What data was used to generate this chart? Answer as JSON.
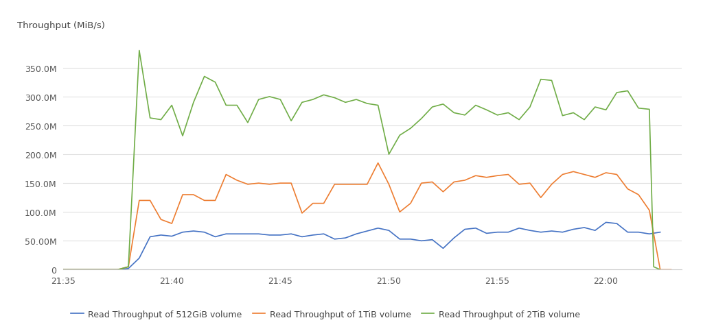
{
  "ylabel": "Throughput (MiB/s)",
  "background_color": "#ffffff",
  "grid_color": "#e0e0e0",
  "y_ticks": [
    0,
    50000000,
    100000000,
    150000000,
    200000000,
    250000000,
    300000000,
    350000000
  ],
  "x_tick_minutes": [
    0,
    5,
    10,
    15,
    20,
    25,
    28
  ],
  "x_tick_labels": [
    "21:35",
    "21:40",
    "21:45",
    "21:50",
    "21:55",
    "22:00",
    ""
  ],
  "xlim_minutes": [
    0,
    28.5
  ],
  "ylim": [
    0,
    400000000
  ],
  "series": {
    "512GiB": {
      "color": "#4472c4",
      "label": "Read Throughput of 512GiB volume",
      "t_minutes": [
        0,
        2.5,
        3.0,
        3.5,
        4.0,
        4.5,
        5.0,
        5.5,
        6.0,
        6.5,
        7.0,
        7.5,
        8.0,
        8.5,
        9.0,
        9.5,
        10.0,
        10.5,
        11.0,
        11.5,
        12.0,
        12.5,
        13.0,
        13.5,
        14.0,
        14.5,
        15.0,
        15.5,
        16.0,
        16.5,
        17.0,
        17.5,
        18.0,
        18.5,
        19.0,
        19.5,
        20.0,
        20.5,
        21.0,
        21.5,
        22.0,
        22.5,
        23.0,
        23.5,
        24.0,
        24.5,
        25.0,
        25.5,
        26.0,
        26.5,
        27.0,
        27.5
      ],
      "y": [
        0,
        0,
        2000000.0,
        20000000.0,
        57000000.0,
        60000000.0,
        58000000.0,
        65000000.0,
        67000000.0,
        65000000.0,
        57000000.0,
        62000000.0,
        62000000.0,
        62000000.0,
        62000000.0,
        60000000.0,
        60000000.0,
        62000000.0,
        57000000.0,
        60000000.0,
        62000000.0,
        53000000.0,
        55000000.0,
        62000000.0,
        67000000.0,
        72000000.0,
        68000000.0,
        53000000.0,
        53000000.0,
        50000000.0,
        52000000.0,
        37000000.0,
        55000000.0,
        70000000.0,
        72000000.0,
        63000000.0,
        65000000.0,
        65000000.0,
        72000000.0,
        68000000.0,
        65000000.0,
        67000000.0,
        65000000.0,
        70000000.0,
        73000000.0,
        68000000.0,
        82000000.0,
        80000000.0,
        65000000.0,
        65000000.0,
        62000000.0,
        65000000.0
      ]
    },
    "1TiB": {
      "color": "#ed7d31",
      "label": "Read Throughput of 1TiB volume",
      "t_minutes": [
        0,
        2.5,
        3.0,
        3.5,
        4.0,
        4.5,
        5.0,
        5.5,
        6.0,
        6.5,
        7.0,
        7.5,
        8.0,
        8.5,
        9.0,
        9.5,
        10.0,
        10.5,
        11.0,
        11.5,
        12.0,
        12.5,
        13.0,
        13.5,
        14.0,
        14.5,
        15.0,
        15.5,
        16.0,
        16.5,
        17.0,
        17.5,
        18.0,
        18.5,
        19.0,
        19.5,
        20.0,
        20.5,
        21.0,
        21.5,
        22.0,
        22.5,
        23.0,
        23.5,
        24.0,
        24.5,
        25.0,
        25.5,
        26.0,
        26.5,
        27.0,
        27.5,
        28.0
      ],
      "y": [
        0,
        0,
        5000000.0,
        120000000.0,
        120000000.0,
        87000000.0,
        80000000.0,
        130000000.0,
        130000000.0,
        120000000.0,
        120000000.0,
        165000000.0,
        155000000.0,
        148000000.0,
        150000000.0,
        148000000.0,
        150000000.0,
        150000000.0,
        98000000.0,
        115000000.0,
        115000000.0,
        148000000.0,
        148000000.0,
        148000000.0,
        148000000.0,
        185000000.0,
        148000000.0,
        100000000.0,
        115000000.0,
        150000000.0,
        152000000.0,
        135000000.0,
        152000000.0,
        155000000.0,
        163000000.0,
        160000000.0,
        163000000.0,
        165000000.0,
        148000000.0,
        150000000.0,
        125000000.0,
        148000000.0,
        165000000.0,
        170000000.0,
        165000000.0,
        160000000.0,
        168000000.0,
        165000000.0,
        140000000.0,
        130000000.0,
        103000000.0,
        0,
        0
      ]
    },
    "2TiB": {
      "color": "#70ad47",
      "label": "Read Throughput of 2TiB volume",
      "t_minutes": [
        0,
        2.5,
        3.0,
        3.5,
        4.0,
        4.5,
        5.0,
        5.5,
        6.0,
        6.5,
        7.0,
        7.5,
        8.0,
        8.5,
        9.0,
        9.5,
        10.0,
        10.5,
        11.0,
        11.5,
        12.0,
        12.5,
        13.0,
        13.5,
        14.0,
        14.5,
        15.0,
        15.5,
        16.0,
        16.5,
        17.0,
        17.5,
        18.0,
        18.5,
        19.0,
        19.5,
        20.0,
        20.5,
        21.0,
        21.5,
        22.0,
        22.5,
        23.0,
        23.5,
        24.0,
        24.5,
        25.0,
        25.5,
        26.0,
        26.5,
        27.0,
        27.2,
        27.5
      ],
      "y": [
        0,
        0,
        5000000.0,
        380000000.0,
        263000000.0,
        260000000.0,
        285000000.0,
        232000000.0,
        290000000.0,
        335000000.0,
        325000000.0,
        285000000.0,
        285000000.0,
        255000000.0,
        295000000.0,
        300000000.0,
        295000000.0,
        258000000.0,
        290000000.0,
        295000000.0,
        303000000.0,
        298000000.0,
        290000000.0,
        295000000.0,
        288000000.0,
        285000000.0,
        200000000.0,
        233000000.0,
        245000000.0,
        262000000.0,
        282000000.0,
        287000000.0,
        272000000.0,
        268000000.0,
        285000000.0,
        277000000.0,
        268000000.0,
        272000000.0,
        260000000.0,
        282000000.0,
        330000000.0,
        328000000.0,
        267000000.0,
        272000000.0,
        260000000.0,
        282000000.0,
        277000000.0,
        307000000.0,
        310000000.0,
        280000000.0,
        278000000.0,
        5000000.0,
        0
      ]
    }
  },
  "legend_fontsize": 9,
  "axis_tick_fontsize": 9
}
